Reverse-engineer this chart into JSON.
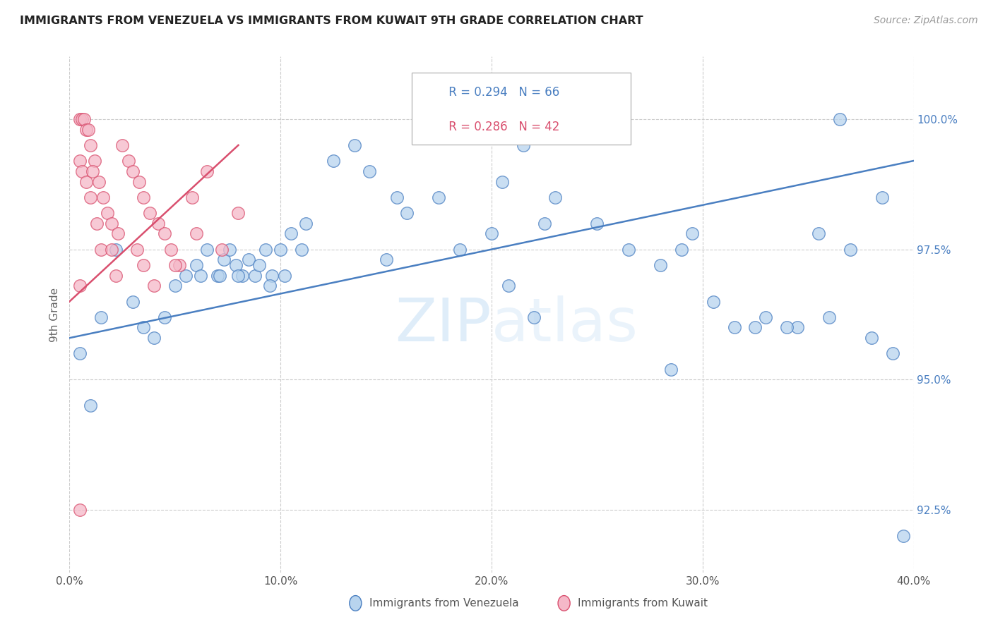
{
  "title": "IMMIGRANTS FROM VENEZUELA VS IMMIGRANTS FROM KUWAIT 9TH GRADE CORRELATION CHART",
  "source": "Source: ZipAtlas.com",
  "xlabel_ticks": [
    "0.0%",
    "10.0%",
    "20.0%",
    "30.0%",
    "40.0%"
  ],
  "xlabel_tick_vals": [
    0.0,
    10.0,
    20.0,
    30.0,
    40.0
  ],
  "ylabel_ticks": [
    "92.5%",
    "95.0%",
    "97.5%",
    "100.0%"
  ],
  "ylabel_tick_vals": [
    92.5,
    95.0,
    97.5,
    100.0
  ],
  "ylabel": "9th Grade",
  "legend_label1": "Immigrants from Venezuela",
  "legend_label2": "Immigrants from Kuwait",
  "r1": 0.294,
  "n1": 66,
  "r2": 0.286,
  "n2": 42,
  "color_blue": "#b8d4ee",
  "color_pink": "#f5b8c8",
  "line_color_blue": "#4a7fc1",
  "line_color_pink": "#d94f6e",
  "watermark_zip": "ZIP",
  "watermark_atlas": "atlas",
  "xlim": [
    0,
    40
  ],
  "ylim": [
    91.3,
    101.2
  ],
  "blue_x": [
    1.0,
    2.2,
    3.0,
    4.5,
    5.0,
    5.5,
    6.0,
    6.5,
    7.0,
    7.3,
    7.6,
    7.9,
    8.2,
    8.5,
    8.8,
    9.0,
    9.3,
    9.6,
    10.0,
    10.5,
    11.2,
    12.5,
    13.5,
    14.2,
    15.5,
    16.0,
    17.5,
    18.5,
    20.0,
    20.5,
    21.5,
    22.5,
    23.0,
    25.0,
    26.5,
    28.0,
    29.0,
    29.5,
    30.5,
    31.5,
    32.5,
    33.0,
    34.5,
    35.5,
    36.5,
    37.0,
    38.5,
    39.5,
    0.5,
    1.5,
    3.5,
    4.0,
    6.2,
    7.1,
    8.0,
    9.5,
    10.2,
    11.0,
    15.0,
    20.8,
    22.0,
    28.5,
    34.0,
    36.0,
    38.0,
    39.0
  ],
  "blue_y": [
    94.5,
    97.5,
    96.5,
    96.2,
    96.8,
    97.0,
    97.2,
    97.5,
    97.0,
    97.3,
    97.5,
    97.2,
    97.0,
    97.3,
    97.0,
    97.2,
    97.5,
    97.0,
    97.5,
    97.8,
    98.0,
    99.2,
    99.5,
    99.0,
    98.5,
    98.2,
    98.5,
    97.5,
    97.8,
    98.8,
    99.5,
    98.0,
    98.5,
    98.0,
    97.5,
    97.2,
    97.5,
    97.8,
    96.5,
    96.0,
    96.0,
    96.2,
    96.0,
    97.8,
    100.0,
    97.5,
    98.5,
    92.0,
    95.5,
    96.2,
    96.0,
    95.8,
    97.0,
    97.0,
    97.0,
    96.8,
    97.0,
    97.5,
    97.3,
    96.8,
    96.2,
    95.2,
    96.0,
    96.2,
    95.8,
    95.5
  ],
  "pink_x": [
    0.5,
    0.6,
    0.7,
    0.8,
    0.9,
    1.0,
    1.2,
    1.4,
    1.6,
    1.8,
    2.0,
    2.3,
    2.5,
    2.8,
    3.0,
    3.3,
    3.5,
    3.8,
    4.2,
    4.5,
    4.8,
    5.2,
    5.8,
    6.5,
    7.2,
    8.0,
    0.5,
    0.6,
    0.8,
    1.0,
    1.1,
    1.3,
    1.5,
    2.0,
    2.2,
    3.2,
    4.0,
    5.0,
    6.0,
    0.5,
    0.5,
    3.5
  ],
  "pink_y": [
    100.0,
    100.0,
    100.0,
    99.8,
    99.8,
    99.5,
    99.2,
    98.8,
    98.5,
    98.2,
    98.0,
    97.8,
    99.5,
    99.2,
    99.0,
    98.8,
    98.5,
    98.2,
    98.0,
    97.8,
    97.5,
    97.2,
    98.5,
    99.0,
    97.5,
    98.2,
    99.2,
    99.0,
    98.8,
    98.5,
    99.0,
    98.0,
    97.5,
    97.5,
    97.0,
    97.5,
    96.8,
    97.2,
    97.8,
    96.8,
    92.5,
    97.2
  ],
  "blue_line_x0": 0,
  "blue_line_y0": 95.8,
  "blue_line_x1": 40,
  "blue_line_y1": 99.2,
  "pink_line_x0": 0,
  "pink_line_y0": 96.5,
  "pink_line_x1": 8,
  "pink_line_y1": 99.5
}
